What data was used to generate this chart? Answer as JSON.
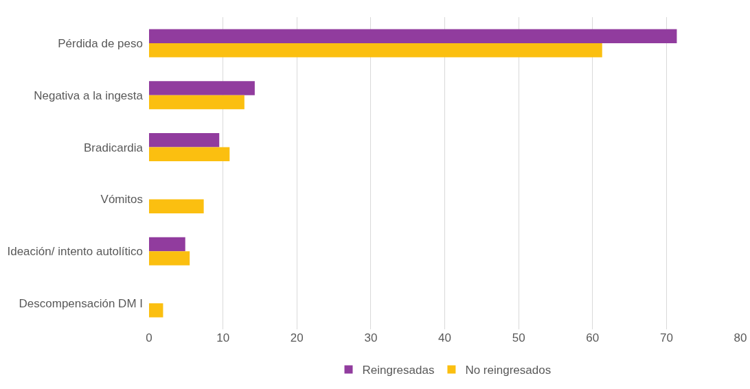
{
  "chart_data": {
    "type": "bar",
    "orientation": "horizontal",
    "categories": [
      "Pérdida de peso",
      "Negativa a la ingesta",
      "Bradicardia",
      "Vómitos",
      "Ideación/ intento autolítico",
      "Descompensación DM I"
    ],
    "series": [
      {
        "name": "Reingresadas",
        "color": "#913c9e",
        "values": [
          71.4,
          14.3,
          9.5,
          0,
          4.9,
          0
        ]
      },
      {
        "name": "No reingresados",
        "color": "#fbbf10",
        "values": [
          61.3,
          12.9,
          10.9,
          7.4,
          5.5,
          1.9
        ]
      }
    ],
    "xlim": [
      0,
      80
    ],
    "xticks": [
      0,
      10,
      20,
      30,
      40,
      50,
      60,
      70,
      80
    ],
    "grid": "x",
    "legend": "bottom"
  }
}
